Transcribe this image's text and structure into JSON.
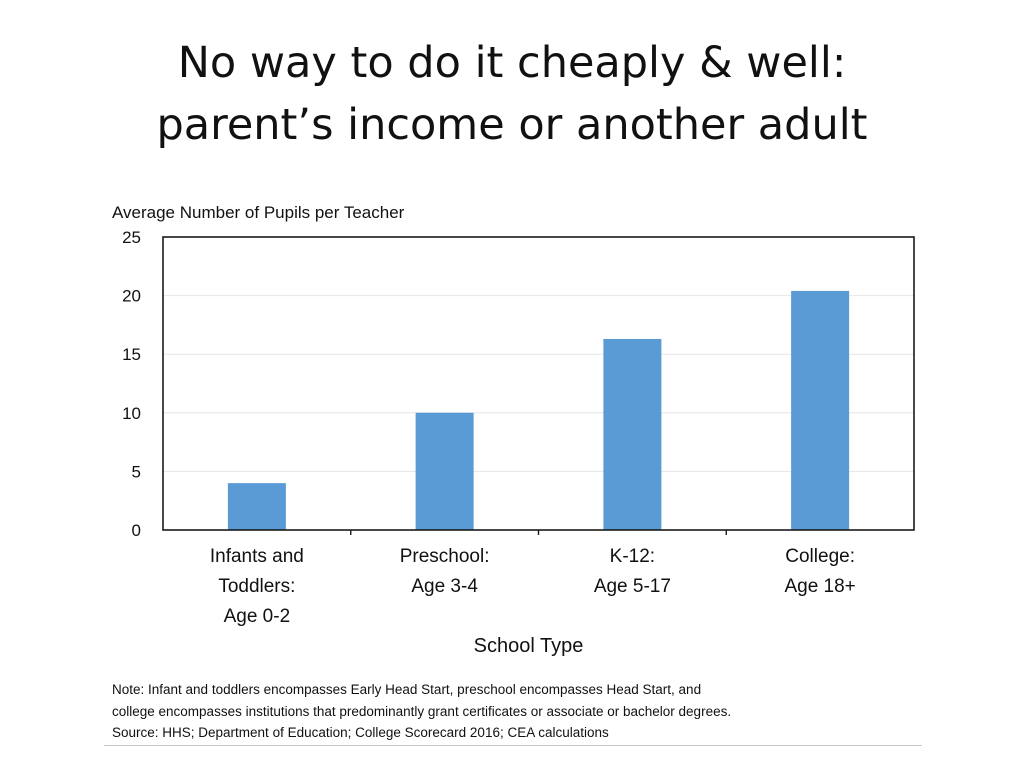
{
  "slide": {
    "title_line1": "No way to do it cheaply & well:",
    "title_line2": "parent’s income or another adult"
  },
  "chart_data": {
    "type": "bar",
    "title": "",
    "ylabel": "Average  Number of Pupils per Teacher",
    "xlabel": "School Type",
    "categories": [
      [
        "Infants and",
        "Toddlers:",
        "Age 0-2"
      ],
      [
        "Preschool:",
        "Age 3-4"
      ],
      [
        "K-12:",
        "Age 5-17"
      ],
      [
        "College:",
        "Age 18+"
      ]
    ],
    "values": [
      4,
      10,
      16.3,
      20.4
    ],
    "ylim": [
      0,
      25
    ],
    "yticks": [
      0,
      5,
      10,
      15,
      20,
      25
    ],
    "bar_color": "#5b9bd5",
    "grid": true,
    "legend": "none"
  },
  "notes": {
    "note_line1": "Note: Infant and toddlers encompasses Early Head Start, preschool encompasses Head Start, and",
    "note_line2": "college encompasses institutions that predominantly grant certificates or associate or bachelor degrees.",
    "source": "Source: HHS; Department  of Education; College Scorecard 2016; CEA calculations"
  }
}
